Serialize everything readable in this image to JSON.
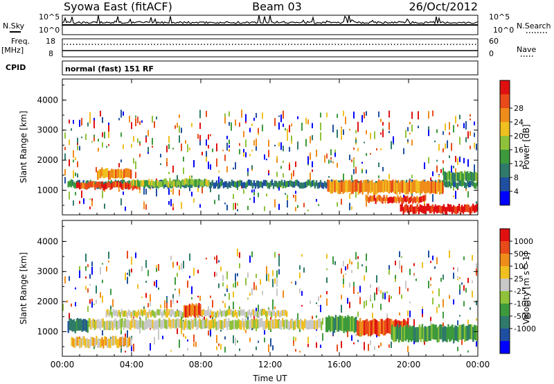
{
  "header": {
    "station": "Syowa East (fitACF)",
    "beam": "Beam 03",
    "date": "26/Oct/2012"
  },
  "top_panels": {
    "nsky_label": "N.Sky",
    "nsearch_label": "N.Search",
    "nsky_ticks": [
      "10^5",
      "10^0"
    ],
    "freq_label": "Freq.",
    "freq_unit": "[MHz]",
    "freq_ticks": [
      "18",
      "8"
    ],
    "nave_label": "Nave",
    "nave_ticks": [
      "60",
      "0"
    ],
    "cpid_label": "CPID",
    "cpid_text": "normal (fast) 151 RF"
  },
  "colors": {
    "power": [
      "#0000ff",
      "#1f4fa0",
      "#2f7a6a",
      "#3c9a3c",
      "#8fc23a",
      "#f0c020",
      "#f08c1a",
      "#e84a1a",
      "#e01010"
    ],
    "velocity": [
      "#0000ff",
      "#1f4fa0",
      "#2f7a6a",
      "#3c9a3c",
      "#8fc23a",
      "#c8c8c8",
      "#f0c020",
      "#f08c1a",
      "#e84a1a",
      "#e01010"
    ]
  },
  "chart_data": [
    {
      "type": "heatmap",
      "name": "power",
      "ylabel": "Slant Range [km]",
      "ylim": [
        180,
        4700
      ],
      "yticks": [
        "1000",
        "2000",
        "3000",
        "4000"
      ],
      "colorbar_label": "Power [dB]",
      "colorbar_ticks": [
        "4",
        "8",
        "12",
        "16",
        "20",
        "24",
        "28"
      ],
      "bands": [
        {
          "t0": 0.3,
          "t1": 24,
          "r0": 1100,
          "r1": 1300,
          "level": 2
        },
        {
          "t0": 0.8,
          "t1": 4.5,
          "r0": 1050,
          "r1": 1250,
          "level": 7
        },
        {
          "t0": 2.0,
          "t1": 4.0,
          "r0": 1400,
          "r1": 1700,
          "level": 6
        },
        {
          "t0": 4.0,
          "t1": 8.5,
          "r0": 1150,
          "r1": 1350,
          "level": 4
        },
        {
          "t0": 15.3,
          "t1": 22,
          "r0": 900,
          "r1": 1300,
          "level": 6
        },
        {
          "t0": 17.5,
          "t1": 21,
          "r0": 600,
          "r1": 800,
          "level": 7
        },
        {
          "t0": 19.5,
          "t1": 24,
          "r0": 250,
          "r1": 500,
          "level": 8
        },
        {
          "t0": 22,
          "t1": 24,
          "r0": 1300,
          "r1": 1600,
          "level": 3
        }
      ]
    },
    {
      "type": "heatmap",
      "name": "velocity",
      "xlabel": "Time UT",
      "ylabel": "Slant Range [km]",
      "xlim": [
        "00:00",
        "24:00"
      ],
      "xticks": [
        "00:00",
        "04:00",
        "08:00",
        "12:00",
        "16:00",
        "20:00",
        "00:00"
      ],
      "ylim": [
        180,
        4700
      ],
      "yticks": [
        "1000",
        "2000",
        "3000",
        "4000"
      ],
      "colorbar_label": "Velocity [m s^-1]",
      "colorbar_ticks": [
        "1000",
        "500",
        "100",
        "25",
        "-25",
        "-100",
        "-500",
        "-1000"
      ],
      "bands": [
        {
          "t0": 0.3,
          "t1": 1.5,
          "r0": 1000,
          "r1": 1400,
          "level": 2
        },
        {
          "t0": 1.5,
          "t1": 15,
          "r0": 1100,
          "r1": 1400,
          "level": 5
        },
        {
          "t0": 2.5,
          "t1": 13,
          "r0": 1500,
          "r1": 1700,
          "level": 5
        },
        {
          "t0": 7.0,
          "t1": 8.0,
          "r0": 1500,
          "r1": 1900,
          "level": 8
        },
        {
          "t0": 15.2,
          "t1": 17,
          "r0": 1000,
          "r1": 1500,
          "level": 3
        },
        {
          "t0": 17,
          "t1": 20,
          "r0": 900,
          "r1": 1400,
          "level": 8
        },
        {
          "t0": 19,
          "t1": 24,
          "r0": 700,
          "r1": 1200,
          "level": 3
        },
        {
          "t0": 0.5,
          "t1": 4,
          "r0": 500,
          "r1": 800,
          "level": 6
        }
      ]
    }
  ]
}
